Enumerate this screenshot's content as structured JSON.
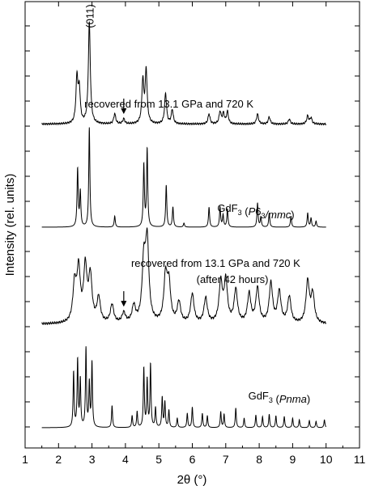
{
  "chart_data": {
    "type": "line",
    "title": "",
    "xlabel": "2θ (°)",
    "ylabel": "Intensity (rel. units)",
    "xlim": [
      1,
      11
    ],
    "xticks": [
      "1",
      "2",
      "3",
      "4",
      "5",
      "6",
      "7",
      "8",
      "9",
      "10",
      "11"
    ],
    "y_ticks_labeled": false,
    "grid": false,
    "legend": "none",
    "series": [
      {
        "key": "s1",
        "order": 1,
        "label": "recovered from 13.1 GPa and 720 K",
        "label_lines": [
          "recovered from 13.1 GPa and 720 K"
        ],
        "label_at": [
          5.3
        ],
        "italic_label": false,
        "baseline": 0.02,
        "noise": 0.01,
        "width": 0.035,
        "x_start": 1.5,
        "x_end": 10.0,
        "peaks": [
          [
            2.55,
            0.45
          ],
          [
            2.62,
            0.32
          ],
          [
            2.92,
            1.0
          ],
          [
            3.68,
            0.1
          ],
          [
            3.95,
            0.05
          ],
          [
            4.52,
            0.42
          ],
          [
            4.62,
            0.52
          ],
          [
            5.2,
            0.3
          ],
          [
            5.4,
            0.14
          ],
          [
            6.5,
            0.1
          ],
          [
            6.83,
            0.12
          ],
          [
            6.93,
            0.1
          ],
          [
            7.05,
            0.12
          ],
          [
            7.95,
            0.1
          ],
          [
            8.3,
            0.07
          ],
          [
            8.9,
            0.05
          ],
          [
            9.45,
            0.08
          ],
          [
            9.55,
            0.06
          ]
        ],
        "arrow_at": 3.95
      },
      {
        "key": "s2",
        "order": 2,
        "label": "GdF3 (P63/mmc)",
        "label_lines": [
          "GdF3 (P63/mmc)"
        ],
        "label_parts": [
          {
            "t": "GdF",
            "style": "normal"
          },
          {
            "t": "3",
            "style": "sub"
          },
          {
            "t": " (",
            "style": "normal"
          },
          {
            "t": "P",
            "style": "italic"
          },
          {
            "t": "6",
            "style": "normal"
          },
          {
            "t": "3",
            "style": "sub"
          },
          {
            "t": "/mmc",
            "style": "italic"
          },
          {
            "t": ")",
            "style": "normal"
          }
        ],
        "label_at": [
          7.9
        ],
        "baseline": 0.0,
        "noise": 0.0,
        "width": 0.02,
        "x_start": 1.5,
        "x_end": 10.0,
        "peaks": [
          [
            2.57,
            0.58
          ],
          [
            2.65,
            0.35
          ],
          [
            2.92,
            1.0
          ],
          [
            3.68,
            0.11
          ],
          [
            4.55,
            0.62
          ],
          [
            4.65,
            0.78
          ],
          [
            5.22,
            0.42
          ],
          [
            5.42,
            0.2
          ],
          [
            5.75,
            0.04
          ],
          [
            6.5,
            0.2
          ],
          [
            6.83,
            0.2
          ],
          [
            6.92,
            0.12
          ],
          [
            7.05,
            0.18
          ],
          [
            7.95,
            0.24
          ],
          [
            8.05,
            0.1
          ],
          [
            8.3,
            0.14
          ],
          [
            8.95,
            0.11
          ],
          [
            9.45,
            0.14
          ],
          [
            9.55,
            0.09
          ],
          [
            9.7,
            0.06
          ]
        ]
      },
      {
        "key": "s3",
        "order": 3,
        "label": "recovered from 13.1 GPa and 720 K (after 42 hours)",
        "label_lines": [
          "recovered from 13.1 GPa and 720 K",
          "(after 42 hours)"
        ],
        "label_at": [
          6.7,
          7.2
        ],
        "italic_label": false,
        "baseline": 0.02,
        "noise": 0.015,
        "width": 0.06,
        "x_start": 1.5,
        "x_end": 10.0,
        "peaks": [
          [
            2.48,
            0.45
          ],
          [
            2.6,
            0.62
          ],
          [
            2.8,
            0.65
          ],
          [
            2.95,
            0.55
          ],
          [
            3.2,
            0.3
          ],
          [
            3.6,
            0.22
          ],
          [
            3.95,
            0.12
          ],
          [
            4.25,
            0.2
          ],
          [
            4.55,
            0.7
          ],
          [
            4.65,
            0.95
          ],
          [
            5.2,
            0.55
          ],
          [
            5.3,
            0.45
          ],
          [
            5.6,
            0.25
          ],
          [
            6.0,
            0.35
          ],
          [
            6.4,
            0.3
          ],
          [
            6.85,
            0.48
          ],
          [
            7.0,
            0.5
          ],
          [
            7.3,
            0.4
          ],
          [
            7.7,
            0.35
          ],
          [
            7.95,
            0.42
          ],
          [
            8.35,
            0.48
          ],
          [
            8.6,
            0.38
          ],
          [
            8.9,
            0.32
          ],
          [
            9.45,
            0.5
          ],
          [
            9.6,
            0.35
          ]
        ],
        "arrow_at": 3.95
      },
      {
        "key": "s4",
        "order": 4,
        "label": "GdF3 (Pnma)",
        "label_lines": [
          "GdF3 (Pnma)"
        ],
        "label_parts": [
          {
            "t": "GdF",
            "style": "normal"
          },
          {
            "t": "3",
            "style": "sub"
          },
          {
            "t": " (",
            "style": "normal"
          },
          {
            "t": "Pnma",
            "style": "italic"
          },
          {
            "t": ")",
            "style": "normal"
          }
        ],
        "label_at": [
          8.6
        ],
        "baseline": 0.0,
        "noise": 0.0,
        "width": 0.018,
        "x_start": 1.5,
        "x_end": 10.0,
        "peaks": [
          [
            2.45,
            0.7
          ],
          [
            2.57,
            0.85
          ],
          [
            2.65,
            0.6
          ],
          [
            2.82,
            1.0
          ],
          [
            2.92,
            0.55
          ],
          [
            3.0,
            0.82
          ],
          [
            3.6,
            0.28
          ],
          [
            4.2,
            0.15
          ],
          [
            4.35,
            0.2
          ],
          [
            4.55,
            0.75
          ],
          [
            4.65,
            0.6
          ],
          [
            4.75,
            0.8
          ],
          [
            4.9,
            0.25
          ],
          [
            5.1,
            0.38
          ],
          [
            5.18,
            0.32
          ],
          [
            5.3,
            0.22
          ],
          [
            5.55,
            0.12
          ],
          [
            5.85,
            0.18
          ],
          [
            6.0,
            0.26
          ],
          [
            6.3,
            0.18
          ],
          [
            6.45,
            0.15
          ],
          [
            6.85,
            0.2
          ],
          [
            6.95,
            0.17
          ],
          [
            7.3,
            0.25
          ],
          [
            7.55,
            0.12
          ],
          [
            7.9,
            0.16
          ],
          [
            8.1,
            0.14
          ],
          [
            8.3,
            0.17
          ],
          [
            8.5,
            0.15
          ],
          [
            8.75,
            0.14
          ],
          [
            9.0,
            0.12
          ],
          [
            9.2,
            0.1
          ],
          [
            9.5,
            0.09
          ],
          [
            9.7,
            0.08
          ],
          [
            9.95,
            0.1
          ]
        ]
      }
    ],
    "annotations": [
      {
        "text": "(011)",
        "x": 2.92,
        "orientation": "vertical"
      }
    ]
  }
}
